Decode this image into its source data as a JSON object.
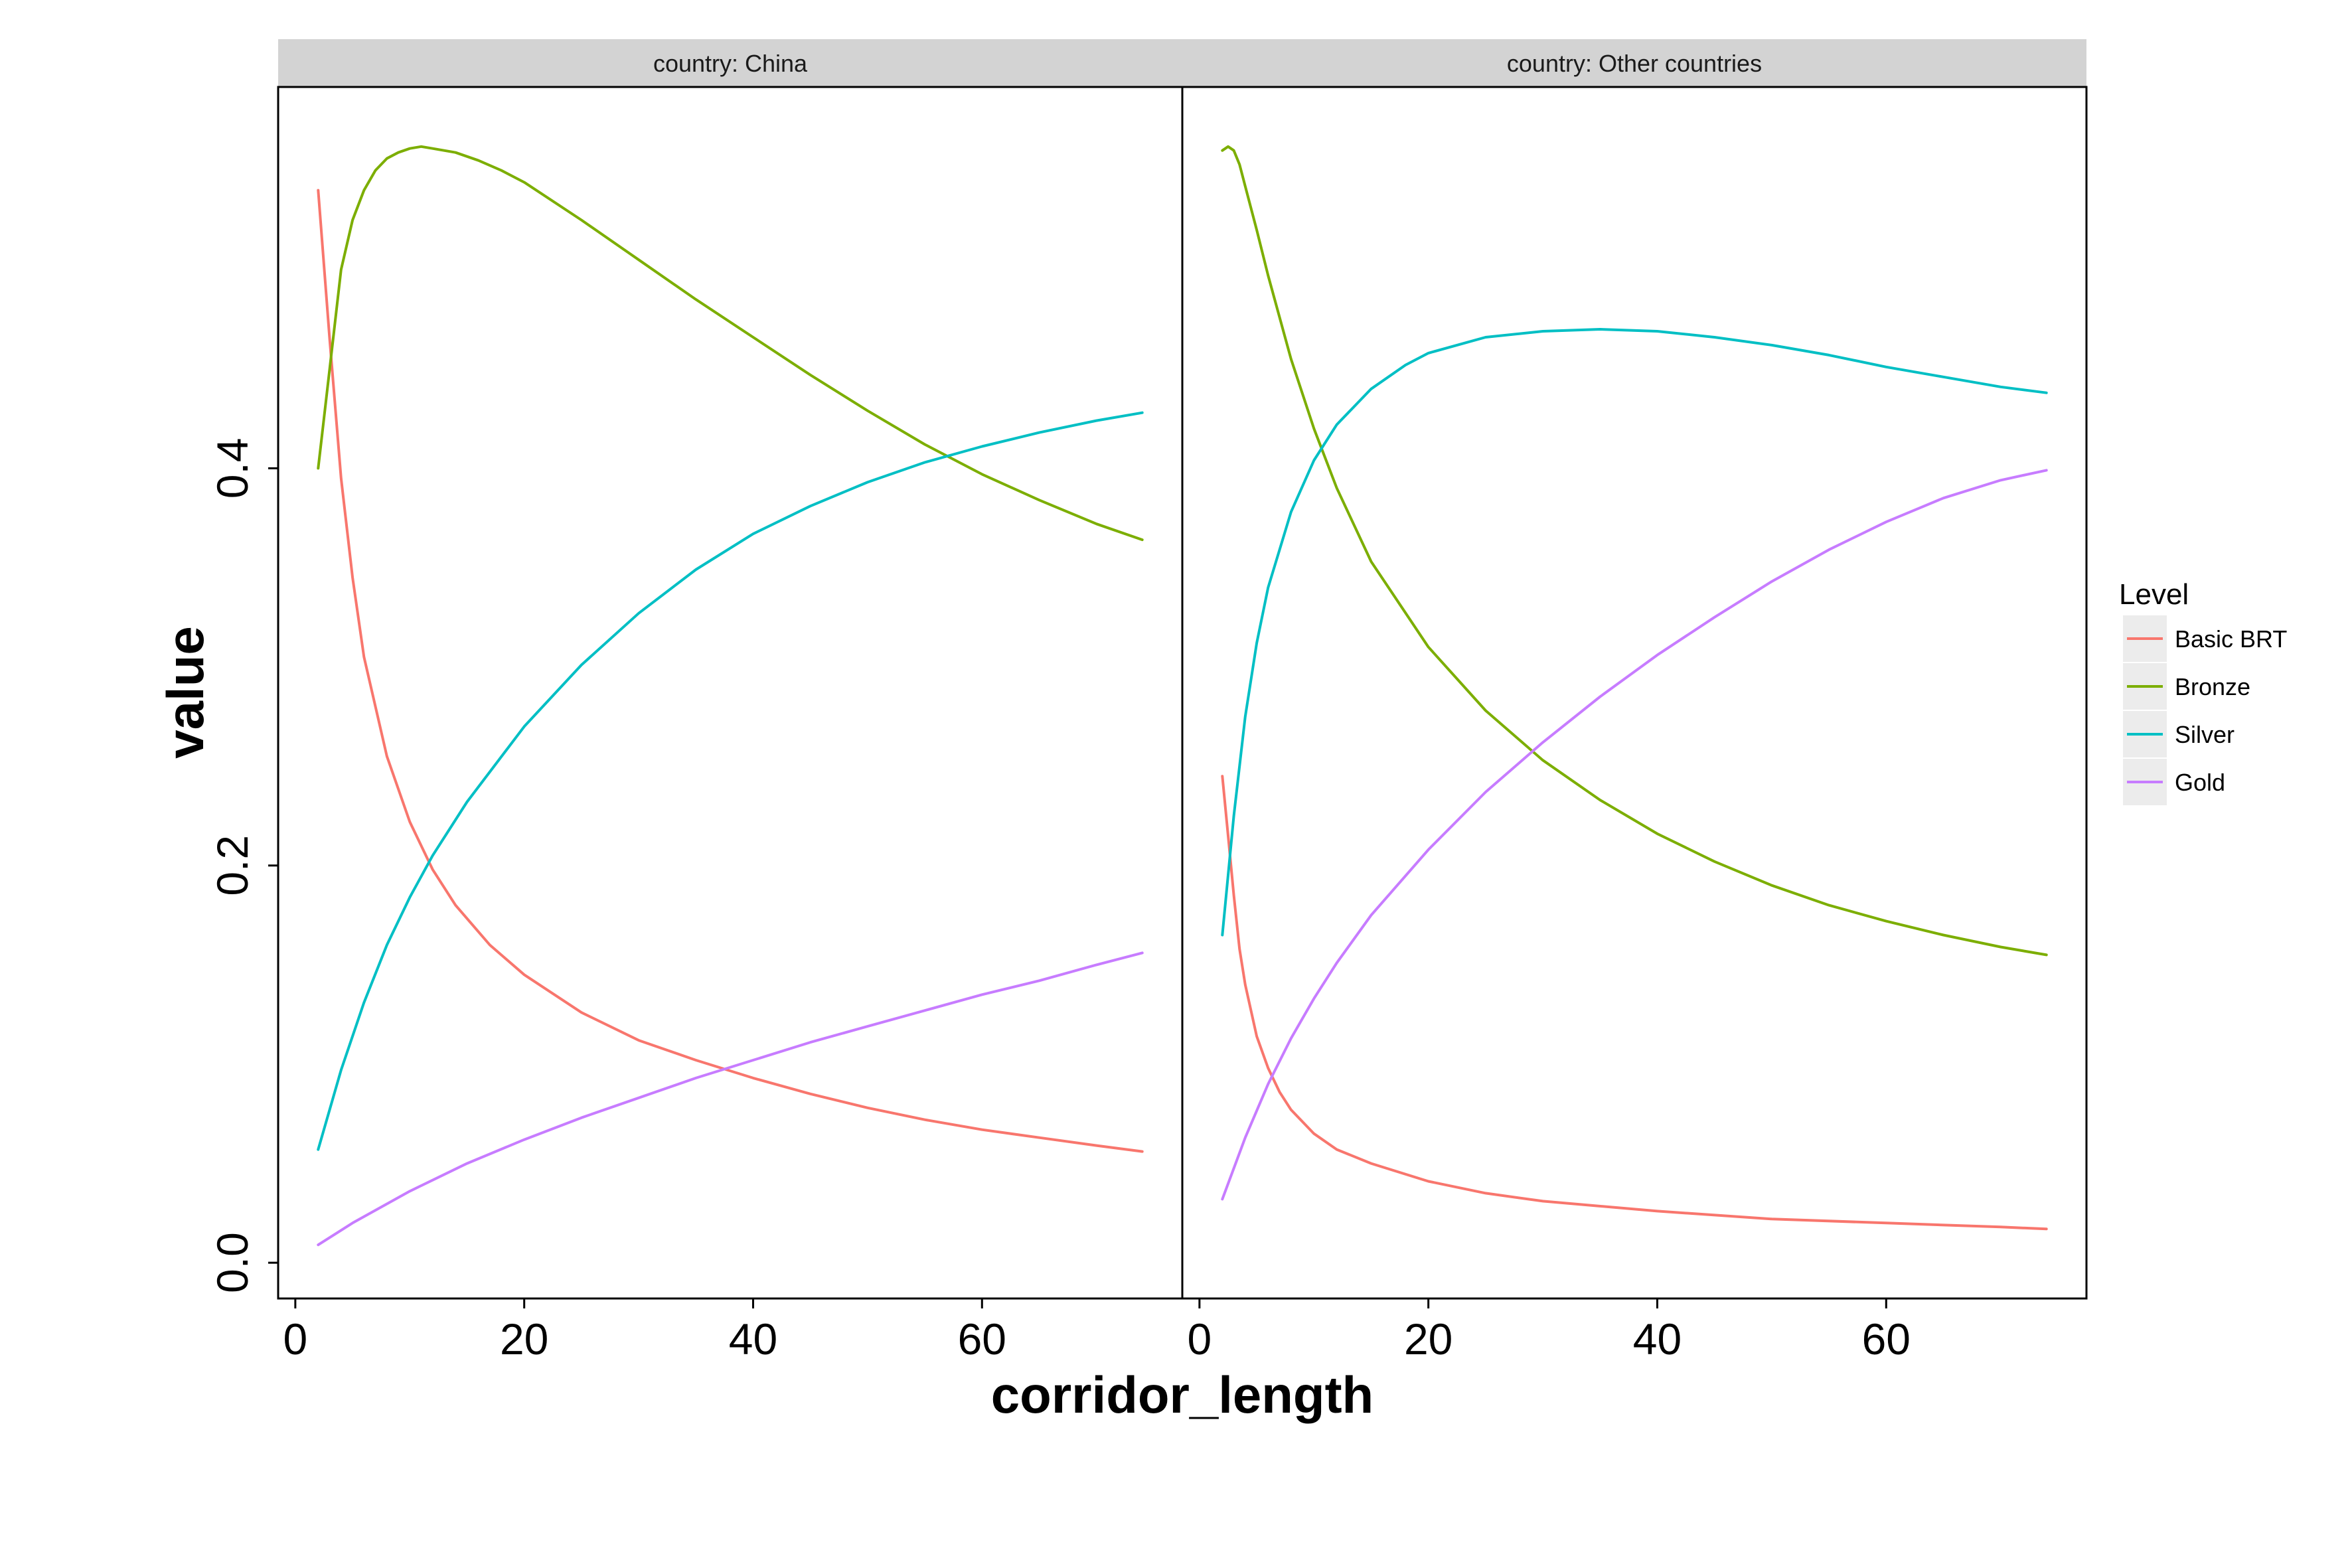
{
  "chart_data": {
    "type": "line",
    "xlabel": "corridor_length",
    "ylabel": "value",
    "xlim": [
      -1.5,
      77.5
    ],
    "ylim": [
      -0.018,
      0.592
    ],
    "x_ticks": [
      0,
      20,
      40,
      60
    ],
    "y_ticks": [
      0.0,
      0.2,
      0.4
    ],
    "y_tick_labels": [
      "0.0",
      "0.2",
      "0.4"
    ],
    "legend": {
      "title": "Level",
      "placement": "right",
      "entries": [
        {
          "name": "Basic BRT",
          "color": "#F8766D"
        },
        {
          "name": "Bronze",
          "color": "#7CAE00"
        },
        {
          "name": "Silver",
          "color": "#00BFC4"
        },
        {
          "name": "Gold",
          "color": "#C77CFF"
        }
      ]
    },
    "panels": [
      {
        "strip": "country: China",
        "series": [
          {
            "name": "Basic BRT",
            "color": "#F8766D",
            "x": [
              2,
              3,
              4,
              5,
              6,
              8,
              10,
              12,
              14,
              17,
              20,
              25,
              30,
              35,
              40,
              45,
              50,
              55,
              60,
              65,
              70,
              74
            ],
            "y": [
              0.54,
              0.465,
              0.395,
              0.345,
              0.305,
              0.255,
              0.222,
              0.198,
              0.18,
              0.16,
              0.145,
              0.126,
              0.112,
              0.102,
              0.093,
              0.085,
              0.078,
              0.072,
              0.067,
              0.063,
              0.059,
              0.056
            ]
          },
          {
            "name": "Bronze",
            "color": "#7CAE00",
            "x": [
              2,
              3,
              4,
              5,
              6,
              7,
              8,
              9,
              10,
              11,
              12,
              14,
              16,
              18,
              20,
              25,
              30,
              35,
              40,
              45,
              50,
              55,
              60,
              65,
              70,
              74
            ],
            "y": [
              0.4,
              0.45,
              0.5,
              0.525,
              0.54,
              0.55,
              0.556,
              0.559,
              0.561,
              0.562,
              0.561,
              0.559,
              0.555,
              0.55,
              0.544,
              0.525,
              0.505,
              0.485,
              0.466,
              0.447,
              0.429,
              0.412,
              0.397,
              0.384,
              0.372,
              0.364
            ]
          },
          {
            "name": "Silver",
            "color": "#00BFC4",
            "x": [
              2,
              4,
              6,
              8,
              10,
              12,
              15,
              20,
              25,
              30,
              35,
              40,
              45,
              50,
              55,
              60,
              65,
              70,
              74
            ],
            "y": [
              0.057,
              0.097,
              0.131,
              0.16,
              0.184,
              0.205,
              0.232,
              0.27,
              0.301,
              0.327,
              0.349,
              0.367,
              0.381,
              0.393,
              0.403,
              0.411,
              0.418,
              0.424,
              0.428
            ]
          },
          {
            "name": "Gold",
            "color": "#C77CFF",
            "x": [
              2,
              5,
              10,
              15,
              20,
              25,
              30,
              35,
              40,
              45,
              50,
              55,
              60,
              65,
              70,
              74
            ],
            "y": [
              0.009,
              0.02,
              0.036,
              0.05,
              0.062,
              0.073,
              0.083,
              0.093,
              0.102,
              0.111,
              0.119,
              0.127,
              0.135,
              0.142,
              0.15,
              0.156
            ]
          }
        ]
      },
      {
        "strip": "country: Other countries",
        "series": [
          {
            "name": "Basic BRT",
            "color": "#F8766D",
            "x": [
              2,
              2.5,
              3,
              3.5,
              4,
              5,
              6,
              7,
              8,
              10,
              12,
              15,
              20,
              25,
              30,
              40,
              50,
              60,
              70,
              74
            ],
            "y": [
              0.245,
              0.215,
              0.185,
              0.158,
              0.14,
              0.114,
              0.098,
              0.086,
              0.077,
              0.065,
              0.057,
              0.05,
              0.041,
              0.035,
              0.031,
              0.026,
              0.022,
              0.02,
              0.018,
              0.017
            ]
          },
          {
            "name": "Bronze",
            "color": "#7CAE00",
            "x": [
              2,
              2.5,
              3,
              3.5,
              4,
              5,
              6,
              8,
              10,
              12,
              15,
              20,
              25,
              30,
              35,
              40,
              45,
              50,
              55,
              60,
              65,
              70,
              74
            ],
            "y": [
              0.56,
              0.562,
              0.56,
              0.553,
              0.542,
              0.52,
              0.497,
              0.455,
              0.42,
              0.39,
              0.353,
              0.31,
              0.278,
              0.253,
              0.233,
              0.216,
              0.202,
              0.19,
              0.18,
              0.172,
              0.165,
              0.159,
              0.155
            ]
          },
          {
            "name": "Silver",
            "color": "#00BFC4",
            "x": [
              2,
              3,
              4,
              5,
              6,
              8,
              10,
              12,
              15,
              18,
              20,
              25,
              30,
              35,
              40,
              45,
              50,
              55,
              60,
              65,
              70,
              74
            ],
            "y": [
              0.165,
              0.225,
              0.275,
              0.312,
              0.34,
              0.378,
              0.404,
              0.422,
              0.44,
              0.452,
              0.458,
              0.466,
              0.469,
              0.47,
              0.469,
              0.466,
              0.462,
              0.457,
              0.451,
              0.446,
              0.441,
              0.438
            ]
          },
          {
            "name": "Gold",
            "color": "#C77CFF",
            "x": [
              2,
              4,
              6,
              8,
              10,
              12,
              15,
              20,
              25,
              30,
              35,
              40,
              45,
              50,
              55,
              60,
              65,
              70,
              74
            ],
            "y": [
              0.032,
              0.063,
              0.09,
              0.113,
              0.133,
              0.151,
              0.175,
              0.208,
              0.237,
              0.262,
              0.285,
              0.306,
              0.325,
              0.343,
              0.359,
              0.373,
              0.385,
              0.394,
              0.399
            ]
          }
        ]
      }
    ]
  }
}
